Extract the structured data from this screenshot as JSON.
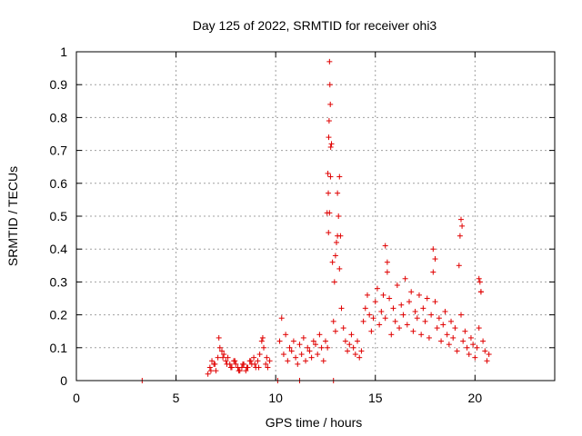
{
  "chart_data": {
    "type": "scatter",
    "title": "Day 125 of 2022, SRMTID for receiver ohi3",
    "xlabel": "GPS time / hours",
    "ylabel": "SRMTID / TECUs",
    "xlim": [
      0,
      24
    ],
    "ylim": [
      0,
      1
    ],
    "xticks": [
      0,
      5,
      10,
      15,
      20
    ],
    "xtick_labels": [
      "0",
      "5",
      "10",
      "15",
      "20"
    ],
    "yticks": [
      0,
      0.1,
      0.2,
      0.3,
      0.4,
      0.5,
      0.6,
      0.7,
      0.8,
      0.9,
      1
    ],
    "ytick_labels": [
      "0",
      "0.1",
      "0.2",
      "0.3",
      "0.4",
      "0.5",
      "0.6",
      "0.7",
      "0.8",
      "0.9",
      "1"
    ],
    "grid": true,
    "marker": "plus",
    "marker_color": "#e00000",
    "series": [
      {
        "name": "SRMTID",
        "x": [
          3.3,
          6.6,
          6.7,
          6.8,
          6.9,
          7.0,
          7.1,
          7.2,
          7.3,
          7.4,
          7.5,
          7.6,
          7.7,
          7.8,
          7.9,
          8.0,
          8.1,
          8.2,
          8.3,
          8.4,
          8.5,
          8.6,
          8.7,
          8.8,
          8.9,
          9.0,
          9.1,
          9.2,
          9.3,
          9.4,
          9.5,
          9.6,
          9.7,
          6.75,
          6.95,
          7.15,
          7.35,
          7.55,
          7.75,
          7.95,
          8.15,
          8.35,
          8.55,
          8.75,
          8.95,
          9.15,
          9.35,
          9.55,
          10.2,
          10.3,
          10.4,
          10.5,
          10.6,
          10.7,
          10.8,
          10.9,
          11.0,
          11.1,
          11.2,
          11.3,
          11.4,
          11.5,
          11.6,
          11.7,
          11.8,
          11.9,
          12.0,
          12.1,
          12.2,
          12.3,
          12.4,
          12.5,
          12.6,
          12.65,
          12.7,
          12.75,
          12.8,
          12.85,
          12.9,
          13.0,
          13.1,
          13.2,
          13.3,
          13.4,
          13.5,
          13.6,
          13.7,
          13.8,
          13.9,
          14.0,
          14.1,
          14.2,
          14.3,
          14.4,
          14.5,
          14.6,
          14.7,
          14.8,
          14.9,
          15.0,
          15.1,
          15.2,
          15.3,
          15.4,
          15.5,
          15.6,
          15.7,
          15.8,
          15.9,
          16.0,
          16.1,
          16.2,
          16.3,
          16.4,
          16.5,
          16.6,
          16.7,
          16.8,
          16.9,
          17.0,
          17.1,
          17.2,
          17.3,
          17.4,
          17.5,
          17.6,
          17.7,
          17.8,
          17.9,
          18.0,
          18.1,
          18.2,
          18.3,
          18.4,
          18.5,
          18.6,
          18.7,
          18.8,
          18.9,
          19.0,
          19.1,
          19.2,
          19.3,
          19.4,
          19.5,
          19.6,
          19.7,
          19.8,
          19.9,
          20.0,
          20.1,
          20.2,
          20.3,
          20.4,
          20.5,
          20.6,
          20.7,
          10.1,
          11.2,
          12.9,
          12.7,
          12.72,
          12.74,
          12.68,
          12.66,
          12.76,
          12.62,
          12.64,
          12.58,
          13.1,
          13.15,
          13.2,
          13.25,
          13.05,
          13.0,
          12.95,
          15.5,
          15.6,
          17.9,
          18.0,
          19.3,
          19.25,
          19.35,
          20.2,
          20.3,
          20.25
        ],
        "y": [
          0,
          0.02,
          0.04,
          0.06,
          0.05,
          0.03,
          0.07,
          0.1,
          0.09,
          0.08,
          0.06,
          0.07,
          0.05,
          0.04,
          0.06,
          0.05,
          0.04,
          0.03,
          0.04,
          0.05,
          0.03,
          0.04,
          0.06,
          0.05,
          0.07,
          0.04,
          0.06,
          0.08,
          0.12,
          0.1,
          0.05,
          0.04,
          0.06,
          0.03,
          0.05,
          0.13,
          0.07,
          0.05,
          0.04,
          0.06,
          0.03,
          0.05,
          0.04,
          0.06,
          0.05,
          0.04,
          0.13,
          0.07,
          0.12,
          0.19,
          0.08,
          0.14,
          0.06,
          0.1,
          0.09,
          0.12,
          0.07,
          0.05,
          0.11,
          0.08,
          0.13,
          0.06,
          0.1,
          0.09,
          0.07,
          0.12,
          0.11,
          0.08,
          0.14,
          0.1,
          0.06,
          0.12,
          0.1,
          0.45,
          0.51,
          0.62,
          0.72,
          0.36,
          0.18,
          0.15,
          0.44,
          0.34,
          0.22,
          0.16,
          0.12,
          0.09,
          0.11,
          0.14,
          0.1,
          0.08,
          0.12,
          0.07,
          0.09,
          0.18,
          0.22,
          0.26,
          0.2,
          0.15,
          0.19,
          0.24,
          0.28,
          0.17,
          0.21,
          0.26,
          0.19,
          0.33,
          0.25,
          0.14,
          0.22,
          0.18,
          0.29,
          0.16,
          0.23,
          0.2,
          0.31,
          0.17,
          0.24,
          0.27,
          0.15,
          0.21,
          0.19,
          0.26,
          0.14,
          0.22,
          0.18,
          0.25,
          0.13,
          0.2,
          0.33,
          0.24,
          0.16,
          0.19,
          0.12,
          0.17,
          0.21,
          0.14,
          0.11,
          0.18,
          0.13,
          0.16,
          0.09,
          0.35,
          0.2,
          0.12,
          0.15,
          0.1,
          0.08,
          0.13,
          0.11,
          0.07,
          0.1,
          0.16,
          0.27,
          0.12,
          0.09,
          0.06,
          0.08,
          0,
          0,
          0,
          0.97,
          0.9,
          0.84,
          0.79,
          0.74,
          0.71,
          0.63,
          0.57,
          0.51,
          0.57,
          0.5,
          0.62,
          0.44,
          0.42,
          0.38,
          0.3,
          0.41,
          0.36,
          0.4,
          0.37,
          0.49,
          0.44,
          0.47,
          0.31,
          0.27,
          0.3
        ]
      }
    ]
  }
}
